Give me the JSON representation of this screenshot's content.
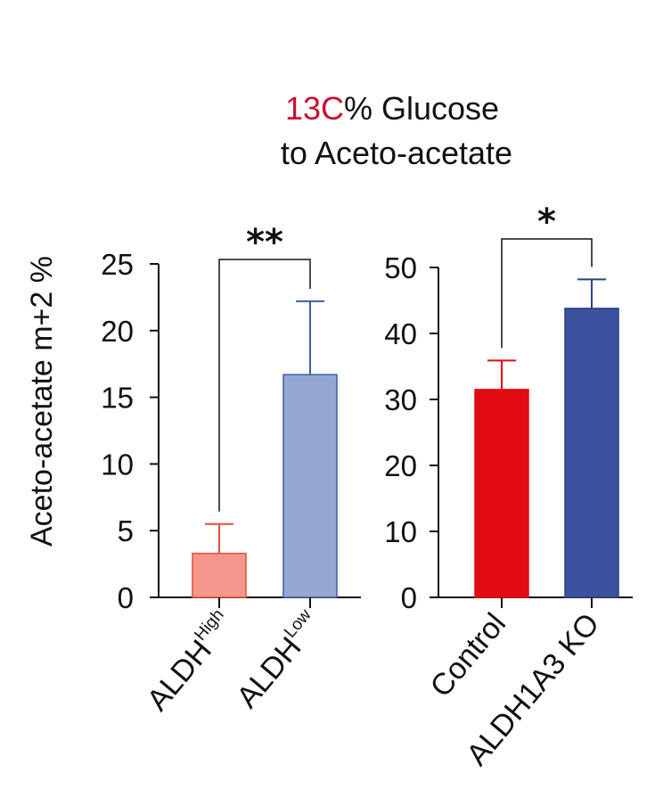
{
  "chart_data": {
    "type": "bar",
    "title_line1_prefix": "13C",
    "title_line1_suffix": "% Glucose",
    "title_line2": "to Aceto-acetate",
    "ylabel": "Aceto-acetate m+2 %",
    "panels": [
      {
        "categories": [
          {
            "base": "ALDH",
            "sup": "High"
          },
          {
            "base": "ALDH",
            "sup": "Low"
          }
        ],
        "values": [
          3.3,
          16.7
        ],
        "errors": [
          2.2,
          5.5
        ],
        "ylim": [
          0,
          25
        ],
        "yticks": [
          "0",
          "5",
          "10",
          "15",
          "20",
          "25"
        ],
        "colors": [
          "#f4968b",
          "#94a8d1"
        ],
        "edge_colors": [
          "#e0503f",
          "#3d5ea6"
        ],
        "significance": "**"
      },
      {
        "categories": [
          {
            "base": "Control",
            "sup": ""
          },
          {
            "base": "ALDH1A3 KO",
            "sup": ""
          }
        ],
        "values": [
          31.5,
          43.8
        ],
        "errors": [
          4.4,
          4.4
        ],
        "ylim": [
          0,
          50
        ],
        "yticks": [
          "0",
          "10",
          "20",
          "30",
          "40",
          "50"
        ],
        "colors": [
          "#e30b13",
          "#3c519d"
        ],
        "edge_colors": [
          "#e30b13",
          "#2e3f86"
        ],
        "significance": "*"
      }
    ],
    "title_accent_color": "#c8102e"
  }
}
